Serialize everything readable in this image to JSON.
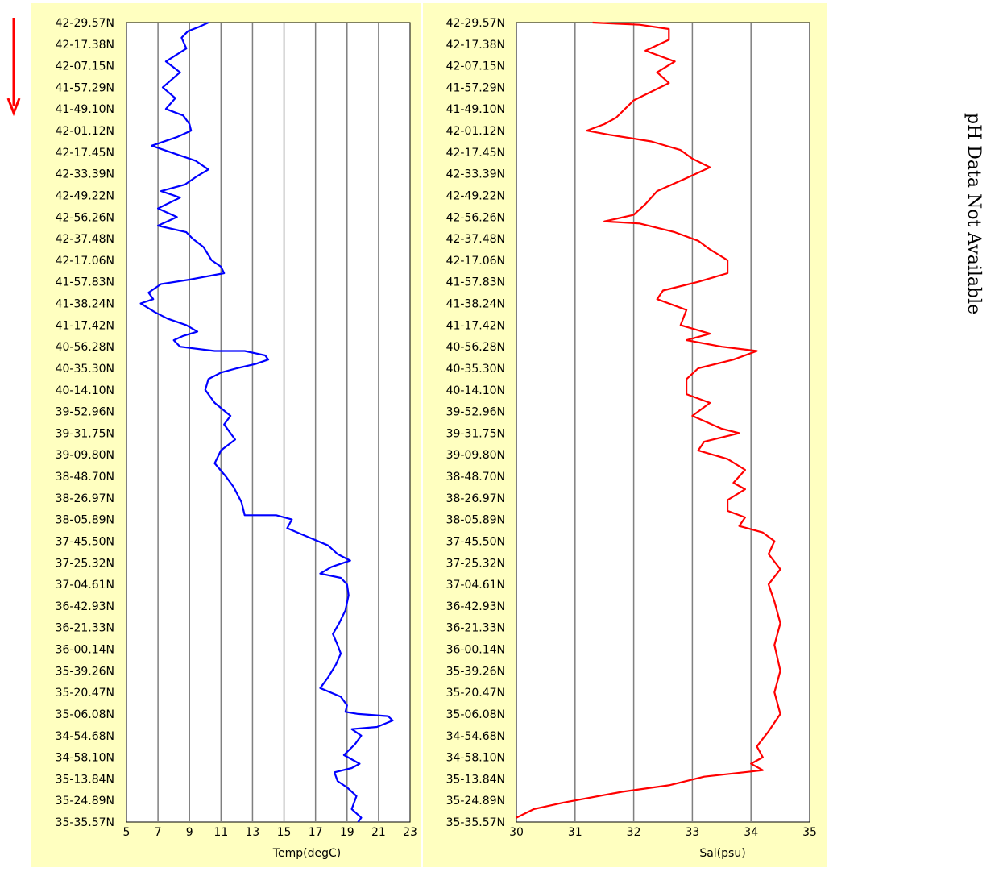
{
  "side_note": "pH Data Not Available",
  "colors": {
    "panel": "#ffffc0",
    "temp_line": "#0000ff",
    "sal_line": "#ff0000",
    "arrow": "#ff0000",
    "grid": "#7f7f7f"
  },
  "icons": {
    "direction_arrow": "down-arrow-icon"
  },
  "chart_data": [
    {
      "type": "line",
      "title": "",
      "xlabel": "Temp(degC)",
      "ylabel": "",
      "xlim": [
        5,
        23
      ],
      "x_ticks": [
        "5",
        "7",
        "9",
        "11",
        "13",
        "15",
        "17",
        "19",
        "21",
        "23"
      ],
      "y_categories": [
        "42-29.57N",
        "42-17.38N",
        "42-07.15N",
        "41-57.29N",
        "41-49.10N",
        "42-01.12N",
        "42-17.45N",
        "42-33.39N",
        "42-49.22N",
        "42-56.26N",
        "42-37.48N",
        "42-17.06N",
        "41-57.83N",
        "41-38.24N",
        "41-17.42N",
        "40-56.28N",
        "40-35.30N",
        "40-14.10N",
        "39-52.96N",
        "39-31.75N",
        "39-09.80N",
        "38-48.70N",
        "38-26.97N",
        "38-05.89N",
        "37-45.50N",
        "37-25.32N",
        "37-04.61N",
        "36-42.93N",
        "36-21.33N",
        "36-00.14N",
        "35-39.26N",
        "35-20.47N",
        "35-06.08N",
        "34-54.68N",
        "34-58.10N",
        "35-13.84N",
        "35-24.89N",
        "35-35.57N"
      ],
      "grid": "vertical",
      "legend": "none",
      "series": [
        {
          "color": "#0000ff",
          "points": [
            [
              10.2,
              0
            ],
            [
              9.6,
              0.2
            ],
            [
              8.9,
              0.4
            ],
            [
              8.5,
              0.7
            ],
            [
              8.8,
              1.2
            ],
            [
              7.5,
              1.8
            ],
            [
              8.4,
              2.3
            ],
            [
              7.3,
              3.0
            ],
            [
              8.1,
              3.5
            ],
            [
              7.5,
              4.0
            ],
            [
              8.6,
              4.3
            ],
            [
              9.0,
              4.7
            ],
            [
              9.1,
              5.0
            ],
            [
              8.2,
              5.3
            ],
            [
              6.6,
              5.7
            ],
            [
              7.8,
              6.0
            ],
            [
              9.4,
              6.4
            ],
            [
              10.2,
              6.8
            ],
            [
              9.5,
              7.1
            ],
            [
              8.7,
              7.5
            ],
            [
              7.2,
              7.8
            ],
            [
              8.4,
              8.1
            ],
            [
              7.0,
              8.6
            ],
            [
              8.2,
              9.0
            ],
            [
              7.0,
              9.4
            ],
            [
              8.8,
              9.7
            ],
            [
              9.2,
              10.0
            ],
            [
              9.9,
              10.4
            ],
            [
              10.4,
              11.0
            ],
            [
              11.0,
              11.3
            ],
            [
              11.2,
              11.6
            ],
            [
              9.0,
              11.9
            ],
            [
              7.2,
              12.1
            ],
            [
              6.4,
              12.5
            ],
            [
              6.7,
              12.8
            ],
            [
              5.9,
              13.0
            ],
            [
              6.8,
              13.4
            ],
            [
              7.6,
              13.7
            ],
            [
              8.8,
              14.0
            ],
            [
              9.5,
              14.3
            ],
            [
              8.6,
              14.5
            ],
            [
              8.0,
              14.7
            ],
            [
              8.4,
              15.0
            ],
            [
              10.6,
              15.2
            ],
            [
              12.5,
              15.2
            ],
            [
              13.8,
              15.4
            ],
            [
              14.0,
              15.6
            ],
            [
              13.2,
              15.8
            ],
            [
              12.0,
              16.0
            ],
            [
              11.0,
              16.2
            ],
            [
              10.2,
              16.5
            ],
            [
              10.0,
              17.0
            ],
            [
              10.6,
              17.6
            ],
            [
              11.6,
              18.2
            ],
            [
              11.2,
              18.6
            ],
            [
              11.9,
              19.3
            ],
            [
              11.0,
              19.8
            ],
            [
              10.6,
              20.4
            ],
            [
              11.3,
              21.0
            ],
            [
              11.8,
              21.5
            ],
            [
              12.3,
              22.2
            ],
            [
              12.5,
              22.8
            ],
            [
              14.5,
              22.8
            ],
            [
              15.5,
              23.0
            ],
            [
              15.2,
              23.4
            ],
            [
              16.5,
              23.8
            ],
            [
              17.8,
              24.2
            ],
            [
              18.4,
              24.6
            ],
            [
              19.2,
              24.9
            ],
            [
              18.0,
              25.2
            ],
            [
              17.3,
              25.5
            ],
            [
              18.6,
              25.7
            ],
            [
              19.0,
              26.0
            ],
            [
              19.1,
              26.5
            ],
            [
              18.9,
              27.2
            ],
            [
              18.5,
              27.8
            ],
            [
              18.1,
              28.3
            ],
            [
              18.4,
              28.8
            ],
            [
              18.6,
              29.2
            ],
            [
              18.3,
              29.7
            ],
            [
              17.8,
              30.3
            ],
            [
              17.3,
              30.8
            ],
            [
              18.6,
              31.2
            ],
            [
              19.0,
              31.6
            ],
            [
              18.9,
              31.9
            ],
            [
              19.7,
              32.0
            ],
            [
              21.6,
              32.1
            ],
            [
              21.9,
              32.3
            ],
            [
              20.9,
              32.6
            ],
            [
              19.3,
              32.7
            ],
            [
              19.9,
              33.0
            ],
            [
              19.5,
              33.4
            ],
            [
              18.8,
              33.9
            ],
            [
              19.8,
              34.3
            ],
            [
              19.3,
              34.5
            ],
            [
              18.2,
              34.7
            ],
            [
              18.4,
              35.1
            ],
            [
              19.0,
              35.4
            ],
            [
              19.6,
              35.8
            ],
            [
              19.3,
              36.4
            ],
            [
              19.9,
              36.8
            ],
            [
              19.7,
              37.0
            ]
          ]
        }
      ]
    },
    {
      "type": "line",
      "title": "",
      "xlabel": "Sal(psu)",
      "ylabel": "",
      "xlim": [
        30,
        35
      ],
      "x_ticks": [
        "30",
        "31",
        "32",
        "33",
        "34",
        "35"
      ],
      "y_categories": [
        "42-29.57N",
        "42-17.38N",
        "42-07.15N",
        "41-57.29N",
        "41-49.10N",
        "42-01.12N",
        "42-17.45N",
        "42-33.39N",
        "42-49.22N",
        "42-56.26N",
        "42-37.48N",
        "42-17.06N",
        "41-57.83N",
        "41-38.24N",
        "41-17.42N",
        "40-56.28N",
        "40-35.30N",
        "40-14.10N",
        "39-52.96N",
        "39-31.75N",
        "39-09.80N",
        "38-48.70N",
        "38-26.97N",
        "38-05.89N",
        "37-45.50N",
        "37-25.32N",
        "37-04.61N",
        "36-42.93N",
        "36-21.33N",
        "36-00.14N",
        "35-39.26N",
        "35-20.47N",
        "35-06.08N",
        "34-54.68N",
        "34-58.10N",
        "35-13.84N",
        "35-24.89N",
        "35-35.57N"
      ],
      "grid": "vertical",
      "legend": "none",
      "series": [
        {
          "color": "#ff0000",
          "points": [
            [
              31.3,
              0
            ],
            [
              32.1,
              0.1
            ],
            [
              32.6,
              0.3
            ],
            [
              32.6,
              0.8
            ],
            [
              32.2,
              1.3
            ],
            [
              32.7,
              1.8
            ],
            [
              32.4,
              2.3
            ],
            [
              32.6,
              2.8
            ],
            [
              32.0,
              3.6
            ],
            [
              31.7,
              4.4
            ],
            [
              31.5,
              4.7
            ],
            [
              31.2,
              5.0
            ],
            [
              31.6,
              5.2
            ],
            [
              32.3,
              5.5
            ],
            [
              32.8,
              5.9
            ],
            [
              33.0,
              6.3
            ],
            [
              33.3,
              6.7
            ],
            [
              32.9,
              7.2
            ],
            [
              32.4,
              7.8
            ],
            [
              32.2,
              8.4
            ],
            [
              32.0,
              8.9
            ],
            [
              31.5,
              9.2
            ],
            [
              32.1,
              9.3
            ],
            [
              32.7,
              9.7
            ],
            [
              33.1,
              10.1
            ],
            [
              33.3,
              10.5
            ],
            [
              33.6,
              11.0
            ],
            [
              33.6,
              11.6
            ],
            [
              33.1,
              12.0
            ],
            [
              32.5,
              12.4
            ],
            [
              32.4,
              12.8
            ],
            [
              32.9,
              13.3
            ],
            [
              32.8,
              14.0
            ],
            [
              33.3,
              14.4
            ],
            [
              32.9,
              14.7
            ],
            [
              33.5,
              15.0
            ],
            [
              34.1,
              15.2
            ],
            [
              33.7,
              15.6
            ],
            [
              33.1,
              16.0
            ],
            [
              32.9,
              16.5
            ],
            [
              32.9,
              17.2
            ],
            [
              33.3,
              17.6
            ],
            [
              33.0,
              18.2
            ],
            [
              33.5,
              18.8
            ],
            [
              33.8,
              19.0
            ],
            [
              33.2,
              19.4
            ],
            [
              33.1,
              19.8
            ],
            [
              33.6,
              20.2
            ],
            [
              33.9,
              20.7
            ],
            [
              33.7,
              21.3
            ],
            [
              33.9,
              21.6
            ],
            [
              33.6,
              22.1
            ],
            [
              33.6,
              22.6
            ],
            [
              33.9,
              22.9
            ],
            [
              33.8,
              23.3
            ],
            [
              34.2,
              23.6
            ],
            [
              34.4,
              24.0
            ],
            [
              34.3,
              24.6
            ],
            [
              34.5,
              25.3
            ],
            [
              34.3,
              26.0
            ],
            [
              34.4,
              26.8
            ],
            [
              34.5,
              27.8
            ],
            [
              34.4,
              28.8
            ],
            [
              34.5,
              30.0
            ],
            [
              34.4,
              31.0
            ],
            [
              34.5,
              32.0
            ],
            [
              34.3,
              32.8
            ],
            [
              34.1,
              33.5
            ],
            [
              34.2,
              34.0
            ],
            [
              34.0,
              34.3
            ],
            [
              34.2,
              34.6
            ],
            [
              33.2,
              34.9
            ],
            [
              32.6,
              35.3
            ],
            [
              31.8,
              35.6
            ],
            [
              30.8,
              36.1
            ],
            [
              30.3,
              36.4
            ],
            [
              30.0,
              36.8
            ]
          ]
        }
      ]
    }
  ]
}
